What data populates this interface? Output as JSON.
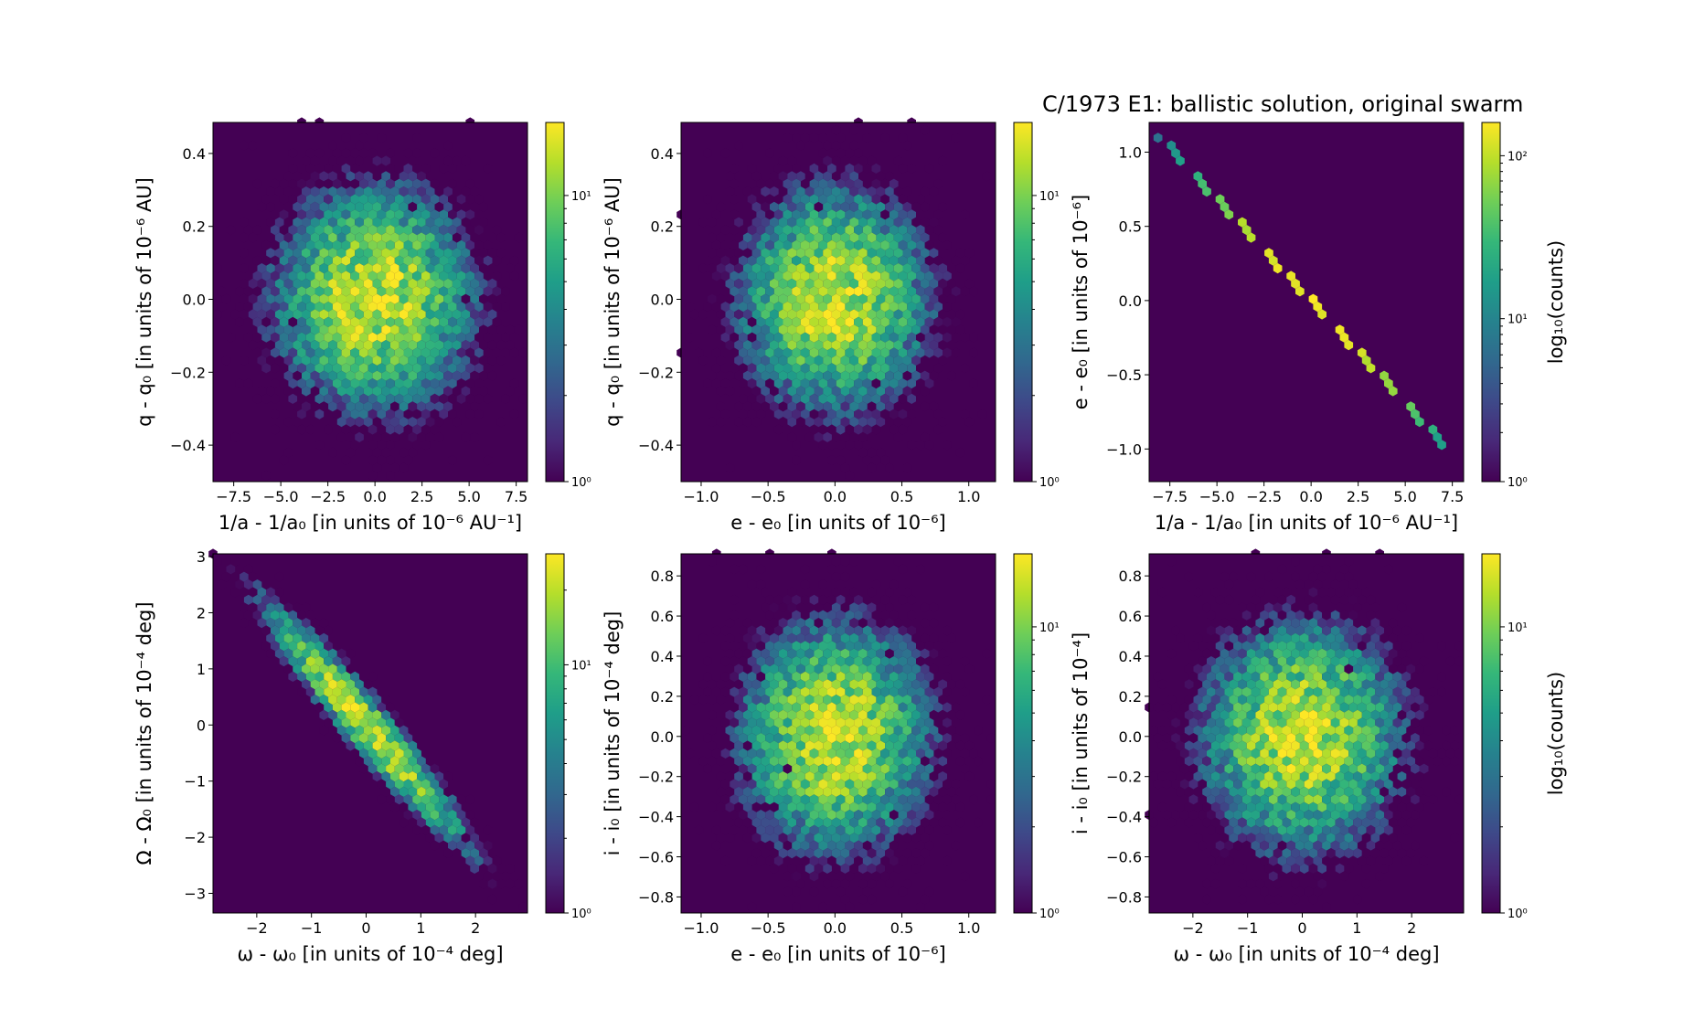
{
  "figure": {
    "title": "C/1973 E1:  ballistic solution, original swarm",
    "colormap": [
      "#440154",
      "#482878",
      "#3e4989",
      "#31688e",
      "#26828e",
      "#1f9e89",
      "#35b779",
      "#6ece58",
      "#b5de2b",
      "#fde725"
    ],
    "background_color": "#440154"
  },
  "chart_data": [
    {
      "type": "heatmap",
      "subtype": "hexbin",
      "panel": "top-left",
      "xlabel": "1/a - 1/a₀ [in units of 10⁻⁶ AU⁻¹]",
      "ylabel": "q - q₀ [in units of 10⁻⁶ AU]",
      "xlim": [
        -8.6,
        8.1
      ],
      "ylim": [
        -0.5,
        0.485
      ],
      "xticks": [
        -7.5,
        -5.0,
        -2.5,
        0.0,
        2.5,
        5.0,
        7.5
      ],
      "xticklabels": [
        "−7.5",
        "−5.0",
        "−2.5",
        "0.0",
        "2.5",
        "5.0",
        "7.5"
      ],
      "yticks": [
        0.4,
        0.2,
        0.0,
        -0.2,
        -0.4
      ],
      "yticklabels": [
        "0.4",
        "0.2",
        "0.0",
        "−0.2",
        "−0.4"
      ],
      "distribution": {
        "shape": "round",
        "center": [
          0,
          0
        ],
        "spread": [
          2.8,
          0.16
        ],
        "correlation": 0
      },
      "colorbar": {
        "scale": "log",
        "range": [
          1,
          18
        ],
        "ticklabels": [
          "10¹",
          "10⁰"
        ],
        "ticks": [
          10,
          1
        ],
        "label": ""
      }
    },
    {
      "type": "heatmap",
      "subtype": "hexbin",
      "panel": "top-middle",
      "xlabel": "e - e₀ [in units of 10⁻⁶]",
      "ylabel": "q - q₀ [in units of 10⁻⁶ AU]",
      "xlim": [
        -1.15,
        1.2
      ],
      "ylim": [
        -0.5,
        0.485
      ],
      "xticks": [
        -1.0,
        -0.5,
        0.0,
        0.5,
        1.0
      ],
      "xticklabels": [
        "−1.0",
        "−0.5",
        "0.0",
        "0.5",
        "1.0"
      ],
      "yticks": [
        0.4,
        0.2,
        0.0,
        -0.2,
        -0.4
      ],
      "yticklabels": [
        "0.4",
        "0.2",
        "0.0",
        "−0.2",
        "−0.4"
      ],
      "distribution": {
        "shape": "round",
        "center": [
          0,
          0
        ],
        "spread": [
          0.37,
          0.16
        ],
        "correlation": 0
      },
      "colorbar": {
        "scale": "log",
        "range": [
          1,
          18
        ],
        "ticklabels": [
          "10¹",
          "10⁰"
        ],
        "ticks": [
          10,
          1
        ],
        "label": ""
      }
    },
    {
      "type": "heatmap",
      "subtype": "hexbin",
      "panel": "top-right",
      "xlabel": "1/a - 1/a₀ [in units of 10⁻⁶ AU⁻¹]",
      "ylabel": "e - e₀ [in units of 10⁻⁶]",
      "xlim": [
        -8.6,
        8.1
      ],
      "ylim": [
        -1.22,
        1.2
      ],
      "xticks": [
        -7.5,
        -5.0,
        -2.5,
        0.0,
        2.5,
        5.0,
        7.5
      ],
      "xticklabels": [
        "−7.5",
        "−5.0",
        "−2.5",
        "0.0",
        "2.5",
        "5.0",
        "7.5"
      ],
      "yticks": [
        1.0,
        0.5,
        0.0,
        -0.5,
        -1.0
      ],
      "yticklabels": [
        "1.0",
        "0.5",
        "0.0",
        "−0.5",
        "−1.0"
      ],
      "distribution": {
        "shape": "line",
        "slope": -0.1375,
        "x_range": [
          -8.3,
          7.3
        ],
        "peak_count": 150
      },
      "colorbar": {
        "scale": "log",
        "range": [
          1,
          160
        ],
        "ticklabels": [
          "10²",
          "10¹",
          "10⁰"
        ],
        "ticks": [
          100,
          10,
          1
        ],
        "label": "log₁₀(counts)"
      }
    },
    {
      "type": "heatmap",
      "subtype": "hexbin",
      "panel": "bottom-left",
      "xlabel": "ω - ω₀ [in units of 10⁻⁴ deg]",
      "ylabel": "Ω - Ω₀ [in units of 10⁻⁴ deg]",
      "xlim": [
        -2.8,
        2.95
      ],
      "ylim": [
        -3.35,
        3.05
      ],
      "xticks": [
        -2,
        -1,
        0,
        1,
        2
      ],
      "xticklabels": [
        "−2",
        "−1",
        "0",
        "1",
        "2"
      ],
      "yticks": [
        3,
        2,
        1,
        0,
        -1,
        -2,
        -3
      ],
      "yticklabels": [
        "3",
        "2",
        "1",
        "0",
        "−1",
        "−2",
        "−3"
      ],
      "distribution": {
        "shape": "elongated",
        "center": [
          0,
          0
        ],
        "spread": [
          0.95,
          1.1
        ],
        "correlation": -0.96
      },
      "colorbar": {
        "scale": "log",
        "range": [
          1,
          28
        ],
        "ticklabels": [
          "10¹",
          "10⁰"
        ],
        "ticks": [
          10,
          1
        ],
        "label": ""
      }
    },
    {
      "type": "heatmap",
      "subtype": "hexbin",
      "panel": "bottom-middle",
      "xlabel": "e - e₀ [in units of 10⁻⁶]",
      "ylabel": "i - i₀ [in units of 10⁻⁴ deg]",
      "xlim": [
        -1.15,
        1.2
      ],
      "ylim": [
        -0.88,
        0.91
      ],
      "xticks": [
        -1.0,
        -0.5,
        0.0,
        0.5,
        1.0
      ],
      "xticklabels": [
        "−1.0",
        "−0.5",
        "0.0",
        "0.5",
        "1.0"
      ],
      "yticks": [
        0.8,
        0.6,
        0.4,
        0.2,
        0.0,
        -0.2,
        -0.4,
        -0.6,
        -0.8
      ],
      "yticklabels": [
        "0.8",
        "0.6",
        "0.4",
        "0.2",
        "0.0",
        "−0.2",
        "−0.4",
        "−0.6",
        "−0.8"
      ],
      "distribution": {
        "shape": "round",
        "center": [
          0,
          0
        ],
        "spread": [
          0.37,
          0.3
        ],
        "correlation": 0
      },
      "colorbar": {
        "scale": "log",
        "range": [
          1,
          18
        ],
        "ticklabels": [
          "10¹",
          "10⁰"
        ],
        "ticks": [
          10,
          1
        ],
        "label": ""
      }
    },
    {
      "type": "heatmap",
      "subtype": "hexbin",
      "panel": "bottom-right",
      "xlabel": "ω - ω₀ [in units of 10⁻⁴ deg]",
      "ylabel": "i - i₀ [in units of 10⁻⁴]",
      "xlim": [
        -2.8,
        2.95
      ],
      "ylim": [
        -0.88,
        0.91
      ],
      "xticks": [
        -2,
        -1,
        0,
        1,
        2
      ],
      "xticklabels": [
        "−2",
        "−1",
        "0",
        "1",
        "2"
      ],
      "yticks": [
        0.8,
        0.6,
        0.4,
        0.2,
        0.0,
        -0.2,
        -0.4,
        -0.6,
        -0.8
      ],
      "yticklabels": [
        "0.8",
        "0.6",
        "0.4",
        "0.2",
        "0.0",
        "−0.2",
        "−0.4",
        "−0.6",
        "−0.8"
      ],
      "distribution": {
        "shape": "round",
        "center": [
          0,
          0
        ],
        "spread": [
          0.95,
          0.3
        ],
        "correlation": 0
      },
      "colorbar": {
        "scale": "log",
        "range": [
          1,
          18
        ],
        "ticklabels": [
          "10¹",
          "10⁰"
        ],
        "ticks": [
          10,
          1
        ],
        "label": "log₁₀(counts)"
      }
    }
  ]
}
